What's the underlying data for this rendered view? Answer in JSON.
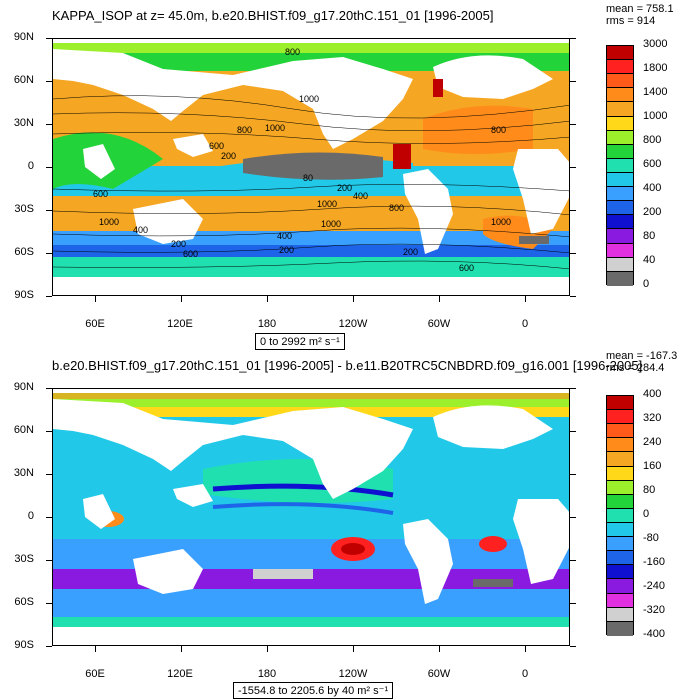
{
  "panel1": {
    "title": "KAPPA_ISOP at z=  45.0m, b.e20.BHIST.f09_g17.20thC.151_01 [1996-2005]",
    "stats": [
      "mean = 758.1",
      "rms = 914"
    ],
    "range_text": "0 to 2992 m² s⁻¹",
    "contour_labels": [
      "800",
      "1000",
      "800",
      "1000",
      "600",
      "200",
      "80",
      "200",
      "400",
      "800",
      "1000",
      "600",
      "1000",
      "400",
      "200",
      "400",
      "200",
      "600",
      "1000",
      "800",
      "1000",
      "200",
      "600"
    ],
    "colorbar": {
      "labels": [
        "3000",
        "1800",
        "1400",
        "1000",
        "800",
        "600",
        "400",
        "200",
        "80",
        "40",
        "0"
      ],
      "colors": [
        "#c00000",
        "#ff2020",
        "#ff5a1a",
        "#ff8c1a",
        "#f5a623",
        "#ffd81a",
        "#9cef2b",
        "#22d33a",
        "#20e0b0",
        "#22c8e8",
        "#3aa0ff",
        "#1e64e8",
        "#1010d0",
        "#8a1ae0",
        "#e030e0",
        "#d0d0d0",
        "#6a6a6a"
      ]
    }
  },
  "panel2": {
    "title": "b.e20.BHIST.f09_g17.20thC.151_01 [1996-2005] - b.e11.B20TRC5CNBDRD.f09_g16.001 [1996-2005]",
    "stats": [
      "mean = -167.3",
      "rms = 284.4"
    ],
    "range_text": "-1554.8 to 2205.6 by 40 m² s⁻¹",
    "colorbar": {
      "labels": [
        "400",
        "320",
        "240",
        "160",
        "80",
        "0",
        "-80",
        "-160",
        "-240",
        "-320",
        "-400"
      ],
      "colors": [
        "#c00000",
        "#ff2020",
        "#ff5a1a",
        "#ff8c1a",
        "#f5a623",
        "#ffd81a",
        "#9cef2b",
        "#22d33a",
        "#20e0b0",
        "#22c8e8",
        "#3aa0ff",
        "#1e64e8",
        "#1010d0",
        "#8a1ae0",
        "#e030e0",
        "#d0d0d0",
        "#6a6a6a"
      ]
    }
  },
  "axes": {
    "lat_labels": [
      "90N",
      "60N",
      "30N",
      "0",
      "30S",
      "60S",
      "90S"
    ],
    "lon_labels": [
      "60E",
      "120E",
      "180",
      "120W",
      "60W",
      "0"
    ]
  }
}
